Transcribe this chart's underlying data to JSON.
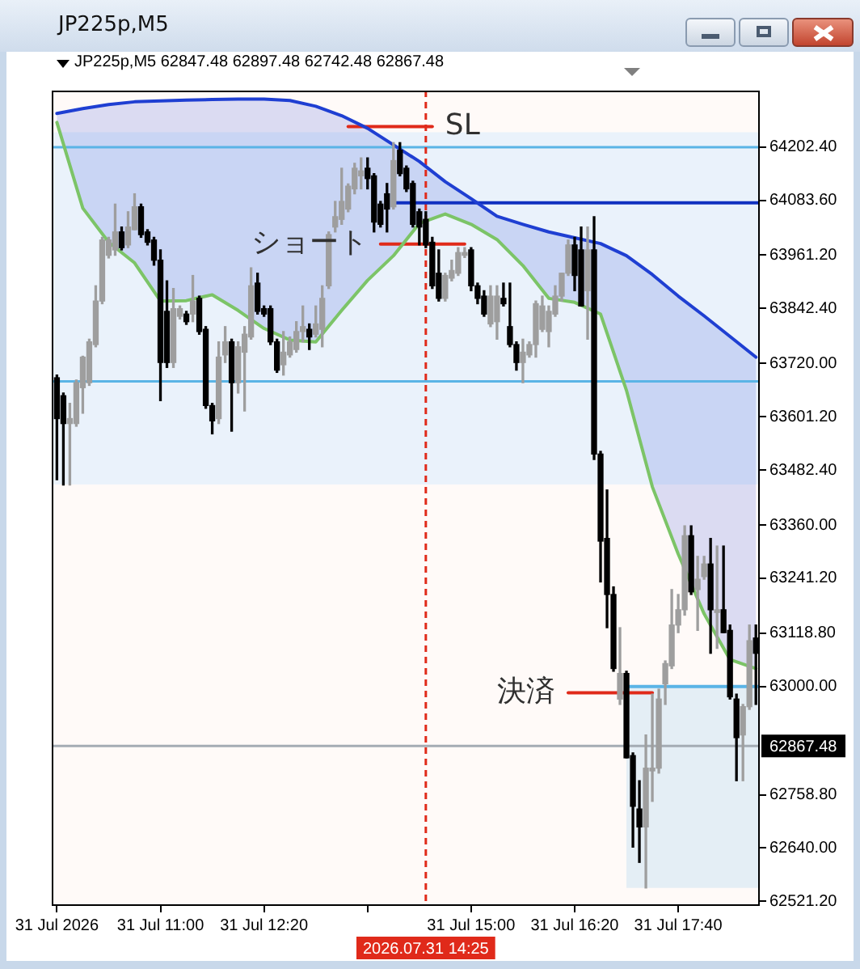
{
  "chart_data": {
    "type": "candlestick",
    "title": "JP225p,M5",
    "subtitle": "JP225p,M5 62847.48 62897.48 62742.48 62867.48",
    "x": [
      "2026-07-31T09:40",
      "2026-07-31T09:45",
      "2026-07-31T09:50",
      "2026-07-31T09:55",
      "2026-07-31T10:00",
      "2026-07-31T10:05",
      "2026-07-31T10:10",
      "2026-07-31T10:15",
      "2026-07-31T10:20",
      "2026-07-31T10:25",
      "2026-07-31T10:30",
      "2026-07-31T10:35",
      "2026-07-31T10:40",
      "2026-07-31T10:45",
      "2026-07-31T10:50",
      "2026-07-31T10:55",
      "2026-07-31T11:00",
      "2026-07-31T11:05",
      "2026-07-31T11:10",
      "2026-07-31T11:15",
      "2026-07-31T11:20",
      "2026-07-31T11:25",
      "2026-07-31T11:30",
      "2026-07-31T11:35",
      "2026-07-31T11:40",
      "2026-07-31T11:45",
      "2026-07-31T11:50",
      "2026-07-31T11:55",
      "2026-07-31T12:00",
      "2026-07-31T12:05",
      "2026-07-31T12:10",
      "2026-07-31T12:15",
      "2026-07-31T12:20",
      "2026-07-31T12:25",
      "2026-07-31T12:30",
      "2026-07-31T12:35",
      "2026-07-31T12:40",
      "2026-07-31T12:45",
      "2026-07-31T12:50",
      "2026-07-31T12:55",
      "2026-07-31T13:00",
      "2026-07-31T13:05",
      "2026-07-31T13:10",
      "2026-07-31T13:15",
      "2026-07-31T13:20",
      "2026-07-31T13:25",
      "2026-07-31T13:30",
      "2026-07-31T13:35",
      "2026-07-31T13:40",
      "2026-07-31T13:45",
      "2026-07-31T13:50",
      "2026-07-31T13:55",
      "2026-07-31T14:00",
      "2026-07-31T14:05",
      "2026-07-31T14:10",
      "2026-07-31T14:15",
      "2026-07-31T14:20",
      "2026-07-31T14:25",
      "2026-07-31T14:30",
      "2026-07-31T14:35",
      "2026-07-31T14:40",
      "2026-07-31T14:45",
      "2026-07-31T14:50",
      "2026-07-31T14:55",
      "2026-07-31T15:00",
      "2026-07-31T15:05",
      "2026-07-31T15:10",
      "2026-07-31T15:15",
      "2026-07-31T15:20",
      "2026-07-31T15:25",
      "2026-07-31T15:30",
      "2026-07-31T15:35",
      "2026-07-31T15:40",
      "2026-07-31T15:45",
      "2026-07-31T15:50",
      "2026-07-31T15:55",
      "2026-07-31T16:00",
      "2026-07-31T16:05",
      "2026-07-31T16:10",
      "2026-07-31T16:15",
      "2026-07-31T16:20",
      "2026-07-31T16:25",
      "2026-07-31T16:30",
      "2026-07-31T16:35",
      "2026-07-31T16:40",
      "2026-07-31T16:45",
      "2026-07-31T16:50",
      "2026-07-31T16:55",
      "2026-07-31T17:00",
      "2026-07-31T17:05",
      "2026-07-31T17:10",
      "2026-07-31T17:15",
      "2026-07-31T17:20",
      "2026-07-31T17:25",
      "2026-07-31T17:30",
      "2026-07-31T17:35",
      "2026-07-31T17:40",
      "2026-07-31T17:45",
      "2026-07-31T17:50",
      "2026-07-31T17:55",
      "2026-07-31T18:00",
      "2026-07-31T18:05",
      "2026-07-31T18:10",
      "2026-07-31T18:15",
      "2026-07-31T18:20",
      "2026-07-31T18:25",
      "2026-07-31T18:30",
      "2026-07-31T18:35",
      "2026-07-31T18:40"
    ],
    "ohlc": [
      [
        63688,
        63694,
        63461,
        63597
      ],
      [
        63648,
        63654,
        63449,
        63586
      ],
      [
        63586,
        63631,
        63449,
        63597
      ],
      [
        63586,
        63683,
        63580,
        63677
      ],
      [
        63666,
        63736,
        63609,
        63734
      ],
      [
        63677,
        63774,
        63671,
        63768
      ],
      [
        63762,
        63893,
        63757,
        63859
      ],
      [
        63859,
        64001,
        63853,
        63995
      ],
      [
        63961,
        64001,
        63955,
        63995
      ],
      [
        63973,
        64075,
        63961,
        64013
      ],
      [
        64013,
        64024,
        63973,
        63978
      ],
      [
        63984,
        64058,
        63978,
        64024
      ],
      [
        64018,
        64098,
        64018,
        64069
      ],
      [
        64069,
        64075,
        64001,
        64007
      ],
      [
        64013,
        64018,
        63984,
        63990
      ],
      [
        63995,
        64001,
        63939,
        63950
      ],
      [
        63950,
        63973,
        63637,
        63722
      ],
      [
        63836,
        63904,
        63711,
        63722
      ],
      [
        63722,
        63887,
        63711,
        63842
      ],
      [
        63825,
        63848,
        63819,
        63842
      ],
      [
        63830,
        63836,
        63807,
        63813
      ],
      [
        63830,
        63916,
        63813,
        63859
      ],
      [
        63865,
        63870,
        63785,
        63791
      ],
      [
        63796,
        63802,
        63620,
        63626
      ],
      [
        63626,
        63631,
        63563,
        63592
      ],
      [
        63597,
        63768,
        63586,
        63734
      ],
      [
        63739,
        63802,
        63722,
        63768
      ],
      [
        63768,
        63774,
        63569,
        63677
      ],
      [
        63677,
        63768,
        63654,
        63757
      ],
      [
        63745,
        63802,
        63614,
        63785
      ],
      [
        63779,
        63933,
        63774,
        63893
      ],
      [
        63899,
        63921,
        63830,
        63836
      ],
      [
        63842,
        63848,
        63825,
        63830
      ],
      [
        63842,
        63848,
        63762,
        63768
      ],
      [
        63768,
        63774,
        63700,
        63705
      ],
      [
        63717,
        63791,
        63694,
        63745
      ],
      [
        63739,
        63779,
        63734,
        63768
      ],
      [
        63751,
        63813,
        63745,
        63791
      ],
      [
        63791,
        63848,
        63768,
        63802
      ],
      [
        63796,
        63808,
        63751,
        63779
      ],
      [
        63785,
        63848,
        63779,
        63808
      ],
      [
        63796,
        63893,
        63757,
        63865
      ],
      [
        63893,
        64013,
        63887,
        64007
      ],
      [
        64024,
        64081,
        64013,
        64047
      ],
      [
        64041,
        64155,
        64030,
        64081
      ],
      [
        64064,
        64120,
        64058,
        64115
      ],
      [
        64109,
        64166,
        64098,
        64155
      ],
      [
        64138,
        64178,
        64109,
        64149
      ],
      [
        64155,
        64178,
        64109,
        64132
      ],
      [
        64138,
        64143,
        64013,
        64035
      ],
      [
        64075,
        64081,
        64024,
        64030
      ],
      [
        64098,
        64121,
        64013,
        64064
      ],
      [
        64069,
        64212,
        64064,
        64172
      ],
      [
        64195,
        64212,
        64138,
        64143
      ],
      [
        64155,
        64160,
        64103,
        64109
      ],
      [
        64121,
        64126,
        64024,
        64030
      ],
      [
        64058,
        64064,
        63984,
        64024
      ],
      [
        64041,
        64058,
        63978,
        63984
      ],
      [
        63990,
        64001,
        63887,
        63893
      ],
      [
        63921,
        63973,
        63859,
        63865
      ],
      [
        63865,
        63921,
        63859,
        63916
      ],
      [
        63910,
        63950,
        63904,
        63927
      ],
      [
        63921,
        63978,
        63916,
        63967
      ],
      [
        63961,
        63978,
        63956,
        63967
      ],
      [
        63973,
        63978,
        63882,
        63893
      ],
      [
        63893,
        63899,
        63853,
        63865
      ],
      [
        63870,
        63882,
        63825,
        63830
      ],
      [
        63808,
        63893,
        63802,
        63870
      ],
      [
        63813,
        63893,
        63774,
        63870
      ],
      [
        63865,
        63899,
        63848,
        63853
      ],
      [
        63802,
        63899,
        63757,
        63762
      ],
      [
        63762,
        63768,
        63705,
        63722
      ],
      [
        63722,
        63774,
        63677,
        63745
      ],
      [
        63739,
        63768,
        63734,
        63762
      ],
      [
        63762,
        63859,
        63734,
        63853
      ],
      [
        63796,
        63870,
        63791,
        63848
      ],
      [
        63791,
        63848,
        63757,
        63836
      ],
      [
        63830,
        63893,
        63825,
        63870
      ],
      [
        63870,
        63921,
        63859,
        63921
      ],
      [
        63921,
        63995,
        63916,
        63984
      ],
      [
        63984,
        64001,
        63882,
        63916
      ],
      [
        63973,
        64024,
        63848,
        63848
      ],
      [
        63882,
        64024,
        63774,
        63973
      ],
      [
        63973,
        64047,
        63506,
        63518
      ],
      [
        63518,
        63524,
        63233,
        63324
      ],
      [
        63330,
        63438,
        63131,
        63205
      ],
      [
        63205,
        63222,
        63034,
        63040
      ],
      [
        62972,
        63131,
        62960,
        63029
      ],
      [
        63029,
        63034,
        62841,
        62841
      ],
      [
        62846,
        62852,
        62642,
        62733
      ],
      [
        62727,
        62790,
        62608,
        62687
      ],
      [
        62687,
        62892,
        62551,
        62818
      ],
      [
        62812,
        62983,
        62744,
        62818
      ],
      [
        62818,
        62994,
        62807,
        62972
      ],
      [
        63006,
        63057,
        62960,
        63051
      ],
      [
        63046,
        63216,
        63040,
        63137
      ],
      [
        63137,
        63205,
        63120,
        63171
      ],
      [
        63171,
        63358,
        63159,
        63336
      ],
      [
        63336,
        63358,
        63205,
        63211
      ],
      [
        63216,
        63290,
        63125,
        63239
      ],
      [
        63245,
        63290,
        63239,
        63273
      ],
      [
        63273,
        63330,
        63074,
        63171
      ],
      [
        63165,
        63313,
        63085,
        63171
      ],
      [
        63171,
        63313,
        63120,
        63120
      ],
      [
        63125,
        63137,
        62972,
        62977
      ],
      [
        62972,
        62983,
        62790,
        62886
      ],
      [
        62892,
        62960,
        62790,
        62955
      ],
      [
        62955,
        63137,
        62949,
        63102
      ],
      [
        63108,
        63137,
        62960,
        63074
      ]
    ],
    "colors": [
      "#000000",
      "#000000",
      "#9e9e9e",
      "#9e9e9e",
      "#9e9e9e",
      "#9e9e9e",
      "#9e9e9e",
      "#9e9e9e",
      "#9e9e9e",
      "#9e9e9e",
      "#000000",
      "#9e9e9e",
      "#9e9e9e",
      "#000000",
      "#000000",
      "#000000",
      "#000000",
      "#000000",
      "#9e9e9e",
      "#9e9e9e",
      "#000000",
      "#9e9e9e",
      "#000000",
      "#000000",
      "#000000",
      "#9e9e9e",
      "#9e9e9e",
      "#000000",
      "#9e9e9e",
      "#9e9e9e",
      "#9e9e9e",
      "#000000",
      "#000000",
      "#000000",
      "#000000",
      "#9e9e9e",
      "#9e9e9e",
      "#9e9e9e",
      "#9e9e9e",
      "#000000",
      "#9e9e9e",
      "#9e9e9e",
      "#9e9e9e",
      "#9e9e9e",
      "#9e9e9e",
      "#9e9e9e",
      "#9e9e9e",
      "#9e9e9e",
      "#000000",
      "#000000",
      "#000000",
      "#000000",
      "#9e9e9e",
      "#000000",
      "#000000",
      "#000000",
      "#000000",
      "#000000",
      "#000000",
      "#000000",
      "#9e9e9e",
      "#9e9e9e",
      "#9e9e9e",
      "#9e9e9e",
      "#000000",
      "#000000",
      "#000000",
      "#9e9e9e",
      "#9e9e9e",
      "#000000",
      "#000000",
      "#000000",
      "#9e9e9e",
      "#9e9e9e",
      "#9e9e9e",
      "#9e9e9e",
      "#9e9e9e",
      "#9e9e9e",
      "#9e9e9e",
      "#9e9e9e",
      "#000000",
      "#000000",
      "#9e9e9e",
      "#000000",
      "#000000",
      "#000000",
      "#000000",
      "#9e9e9e",
      "#000000",
      "#000000",
      "#000000",
      "#9e9e9e",
      "#9e9e9e",
      "#9e9e9e",
      "#9e9e9e",
      "#9e9e9e",
      "#9e9e9e",
      "#9e9e9e",
      "#000000",
      "#9e9e9e",
      "#9e9e9e",
      "#000000",
      "#9e9e9e",
      "#000000",
      "#000000",
      "#000000",
      "#9e9e9e",
      "#9e9e9e",
      "#000000"
    ],
    "series": [
      {
        "type": "line",
        "color": "#1f3fd2",
        "x": [
          "2026-07-31T09:40",
          "2026-07-31T10:00",
          "2026-07-31T10:20",
          "2026-07-31T10:40",
          "2026-07-31T11:00",
          "2026-07-31T11:20",
          "2026-07-31T11:40",
          "2026-07-31T12:00",
          "2026-07-31T12:20",
          "2026-07-31T12:40",
          "2026-07-31T13:00",
          "2026-07-31T13:20",
          "2026-07-31T13:40",
          "2026-07-31T14:00",
          "2026-07-31T14:20",
          "2026-07-31T14:40",
          "2026-07-31T15:00",
          "2026-07-31T15:20",
          "2026-07-31T15:40",
          "2026-07-31T16:00",
          "2026-07-31T16:20",
          "2026-07-31T16:40",
          "2026-07-31T17:00",
          "2026-07-31T17:20",
          "2026-07-31T17:40",
          "2026-07-31T18:00",
          "2026-07-31T18:20",
          "2026-07-31T18:40"
        ],
        "values": [
          64277,
          64288,
          64297,
          64303,
          64305,
          64307,
          64308,
          64309,
          64309,
          64306,
          64293,
          64272,
          64244,
          64207,
          64170,
          64125,
          64087,
          64048,
          64030,
          64013,
          64000,
          63987,
          63960,
          63918,
          63870,
          63826,
          63780,
          63734
        ],
        "lower": [
          64257,
          64066,
          63990,
          63944,
          63859,
          63860,
          63873,
          63838,
          63798,
          63772,
          63768,
          63838,
          63905,
          63960,
          64032,
          64053,
          64030,
          63996,
          63938,
          63865,
          63856,
          63830,
          63660,
          63445,
          63295,
          63162,
          63060,
          63040
        ],
        "upper": [
          64277,
          64288,
          64297,
          64303,
          64305,
          64307,
          64308,
          64309,
          64309,
          64306,
          64293,
          64272,
          64244,
          64207,
          64170,
          64125,
          64087,
          64048,
          64030,
          64013,
          64000,
          63987,
          63960,
          63918,
          63870,
          63826,
          63780,
          63734
        ]
      },
      {
        "type": "line",
        "color": "#7cc467",
        "x": [
          "2026-07-31T09:40",
          "2026-07-31T10:00",
          "2026-07-31T10:20",
          "2026-07-31T10:40",
          "2026-07-31T11:00",
          "2026-07-31T11:20",
          "2026-07-31T11:40",
          "2026-07-31T12:00",
          "2026-07-31T12:20",
          "2026-07-31T12:40",
          "2026-07-31T13:00",
          "2026-07-31T13:20",
          "2026-07-31T13:40",
          "2026-07-31T14:00",
          "2026-07-31T14:20",
          "2026-07-31T14:40",
          "2026-07-31T15:00",
          "2026-07-31T15:20",
          "2026-07-31T15:40",
          "2026-07-31T16:00",
          "2026-07-31T16:20",
          "2026-07-31T16:40",
          "2026-07-31T17:00",
          "2026-07-31T17:20",
          "2026-07-31T17:40",
          "2026-07-31T18:00",
          "2026-07-31T18:20",
          "2026-07-31T18:40"
        ],
        "values": [
          64257,
          64066,
          63990,
          63944,
          63859,
          63860,
          63873,
          63838,
          63798,
          63772,
          63768,
          63838,
          63905,
          63960,
          64032,
          64053,
          64030,
          63996,
          63938,
          63865,
          63856,
          63830,
          63660,
          63445,
          63295,
          63162,
          63060,
          63040
        ]
      },
      {
        "type": "line",
        "color": "#1030c0",
        "x": [
          "2026-07-31T14:00",
          "2026-07-31T18:43"
        ],
        "values": [
          64078,
          64078
        ]
      },
      {
        "type": "line",
        "color": "#5ab4e6",
        "x": [
          "2026-07-31T17:00",
          "2026-07-31T18:43"
        ],
        "values": [
          63000,
          63000
        ],
        "lower": [
          62551,
          62551
        ],
        "upper": [
          63000,
          63000
        ]
      },
      {
        "type": "line",
        "color": "#e02a1a",
        "x": [
          "2026-07-31T13:25",
          "2026-07-31T14:30"
        ],
        "values": [
          64248,
          64248
        ]
      },
      {
        "type": "line",
        "color": "#e02a1a",
        "x": [
          "2026-07-31T13:50",
          "2026-07-31T14:55"
        ],
        "values": [
          63986,
          63986
        ]
      },
      {
        "type": "line",
        "color": "#e02a1a",
        "x": [
          "2026-07-31T16:15",
          "2026-07-31T17:20"
        ],
        "values": [
          62986,
          62986
        ]
      }
    ],
    "bands": [
      {
        "axis": "y",
        "from": 63450,
        "to": 64235,
        "color": "#eaf2fb"
      }
    ],
    "ref_lines": [
      {
        "axis": "y",
        "value": 64202,
        "color": "#5ab4e6"
      },
      {
        "axis": "y",
        "value": 63680,
        "color": "#5ab4e6"
      },
      {
        "axis": "y",
        "value": 62867.48,
        "label": "62867.48",
        "color": "#a4acb4"
      },
      {
        "axis": "x",
        "value": "2026-07-31T14:25",
        "label": "2026.07.31 14:25",
        "color": "#e02a1a",
        "line_style": "dashed"
      }
    ],
    "annotations": [
      {
        "text": "SL",
        "x": "2026-07-31T14:30",
        "y": 64248
      },
      {
        "text": "ショート",
        "x": "2026-07-31T13:50",
        "y": 63986
      },
      {
        "text": "決済",
        "x": "2026-07-31T16:15",
        "y": 62986
      }
    ],
    "xlim": [
      "2026-07-31T09:36",
      "2026-07-31T18:43"
    ],
    "xticks": [
      {
        "value": "2026-07-31T09:40",
        "label": "31 Jul 2026"
      },
      {
        "value": "2026-07-31T11:00",
        "label": "31 Jul 11:00"
      },
      {
        "value": "2026-07-31T12:20",
        "label": "31 Jul 12:20"
      },
      {
        "value": "2026-07-31T13:40",
        "label": null
      },
      {
        "value": "2026-07-31T15:00",
        "label": "31 Jul 15:00"
      },
      {
        "value": "2026-07-31T16:20",
        "label": "31 Jul 16:20"
      },
      {
        "value": "2026-07-31T17:40",
        "label": "31 Jul 17:40"
      }
    ],
    "ylim": [
      62511,
      64328
    ],
    "yticks": [
      {
        "value": 64202.4,
        "label": "64202.40"
      },
      {
        "value": 64083.6,
        "label": "64083.60"
      },
      {
        "value": 63961.2,
        "label": "63961.20"
      },
      {
        "value": 63842.4,
        "label": "63842.40"
      },
      {
        "value": 63720,
        "label": "63720.00"
      },
      {
        "value": 63601.2,
        "label": "63601.20"
      },
      {
        "value": 63482.4,
        "label": "63482.40"
      },
      {
        "value": 63360,
        "label": "63360.00"
      },
      {
        "value": 63241.2,
        "label": "63241.20"
      },
      {
        "value": 63118.8,
        "label": "63118.80"
      },
      {
        "value": 63000,
        "label": "63000.00"
      },
      {
        "value": 62758.8,
        "label": "62758.80"
      },
      {
        "value": 62640,
        "label": "62640.00"
      },
      {
        "value": 62521.2,
        "label": "62521.20"
      }
    ]
  }
}
